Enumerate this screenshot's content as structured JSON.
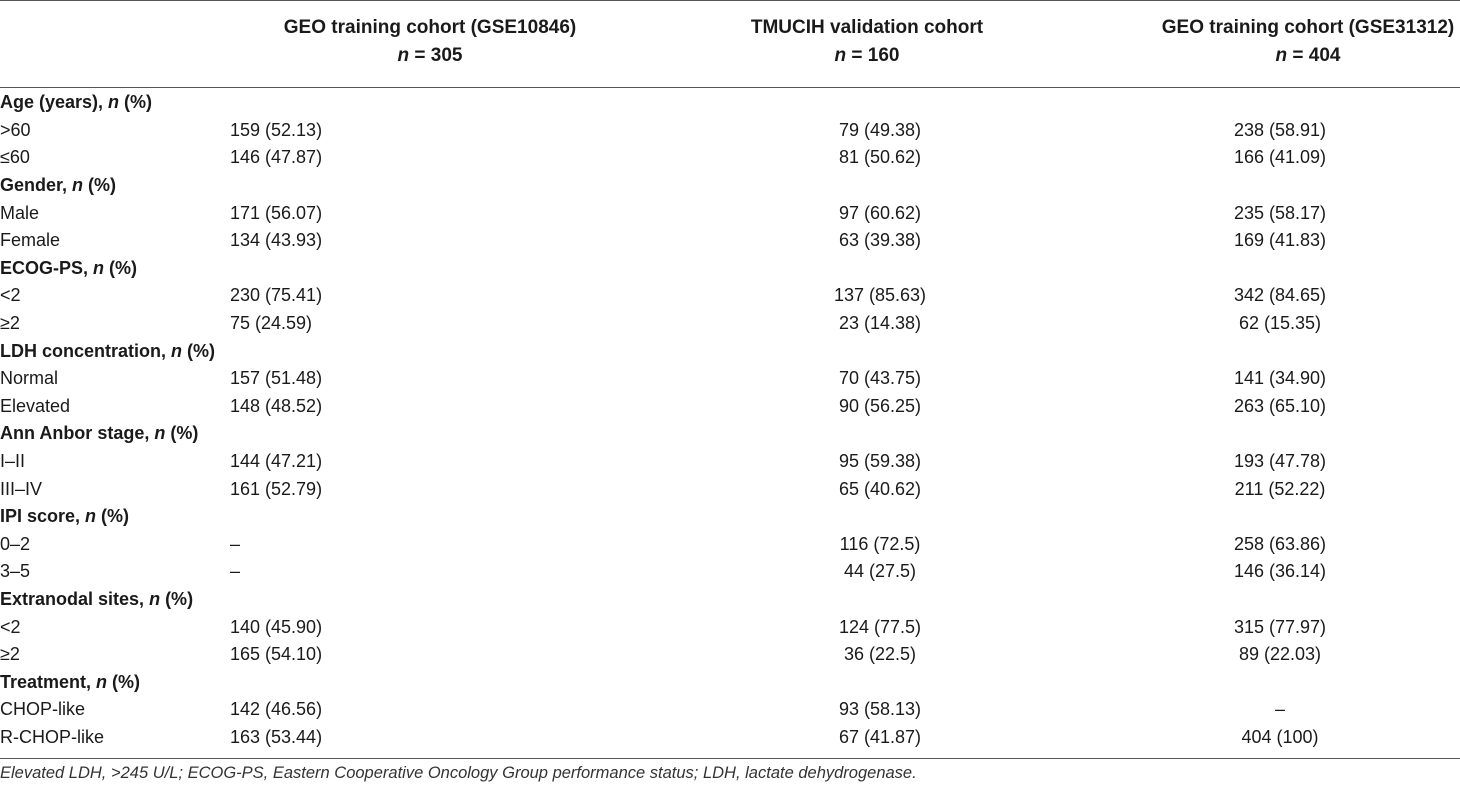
{
  "table": {
    "columns": [
      {
        "title": "GEO training cohort (GSE10846)",
        "n_label": "n",
        "n_value": " = 305"
      },
      {
        "title": "TMUCIH validation cohort",
        "n_label": "n",
        "n_value": " = 160"
      },
      {
        "title": "GEO training cohort (GSE31312)",
        "n_label": "n",
        "n_value": " = 404"
      }
    ],
    "groups": [
      {
        "label": "Age (years), ",
        "n": "n",
        "suffix": " (%)",
        "rows": [
          {
            "label": ">60",
            "values": [
              "159 (52.13)",
              "79 (49.38)",
              "238 (58.91)"
            ]
          },
          {
            "label": "≤60",
            "values": [
              "146 (47.87)",
              "81 (50.62)",
              "166 (41.09)"
            ]
          }
        ]
      },
      {
        "label": "Gender, ",
        "n": "n",
        "suffix": " (%)",
        "rows": [
          {
            "label": "Male",
            "values": [
              "171 (56.07)",
              "97 (60.62)",
              "235 (58.17)"
            ]
          },
          {
            "label": "Female",
            "values": [
              "134 (43.93)",
              "63 (39.38)",
              "169 (41.83)"
            ]
          }
        ]
      },
      {
        "label": "ECOG-PS, ",
        "n": "n",
        "suffix": " (%)",
        "rows": [
          {
            "label": "<2",
            "values": [
              "230 (75.41)",
              "137 (85.63)",
              "342 (84.65)"
            ]
          },
          {
            "label": "≥2",
            "values": [
              "75 (24.59)",
              "23 (14.38)",
              "62 (15.35)"
            ]
          }
        ]
      },
      {
        "label": "LDH concentration, ",
        "n": "n",
        "suffix": " (%)",
        "rows": [
          {
            "label": "Normal",
            "values": [
              "157 (51.48)",
              "70 (43.75)",
              "141 (34.90)"
            ]
          },
          {
            "label": "Elevated",
            "values": [
              "148 (48.52)",
              "90 (56.25)",
              "263 (65.10)"
            ]
          }
        ]
      },
      {
        "label": "Ann Anbor stage, ",
        "n": "n",
        "suffix": " (%)",
        "rows": [
          {
            "label": "I–II",
            "values": [
              "144 (47.21)",
              "95 (59.38)",
              "193 (47.78)"
            ]
          },
          {
            "label": "III–IV",
            "values": [
              "161 (52.79)",
              "65 (40.62)",
              "211 (52.22)"
            ]
          }
        ]
      },
      {
        "label": "IPI score, ",
        "n": "n",
        "suffix": " (%)",
        "rows": [
          {
            "label": "0–2",
            "values": [
              "–",
              "116 (72.5)",
              "258 (63.86)"
            ]
          },
          {
            "label": "3–5",
            "values": [
              "–",
              "44 (27.5)",
              "146 (36.14)"
            ]
          }
        ]
      },
      {
        "label": "Extranodal sites, ",
        "n": "n",
        "suffix": " (%)",
        "rows": [
          {
            "label": "<2",
            "values": [
              "140 (45.90)",
              "124 (77.5)",
              "315 (77.97)"
            ]
          },
          {
            "label": "≥2",
            "values": [
              "165 (54.10)",
              "36 (22.5)",
              "89 (22.03)"
            ]
          }
        ]
      },
      {
        "label": "Treatment, ",
        "n": "n",
        "suffix": " (%)",
        "rows": [
          {
            "label": "CHOP-like",
            "values": [
              "142 (46.56)",
              "93 (58.13)",
              "–"
            ]
          },
          {
            "label": "R-CHOP-like",
            "values": [
              "163 (53.44)",
              "67 (41.87)",
              "404 (100)"
            ]
          }
        ]
      }
    ]
  },
  "footnote": "Elevated LDH, >245 U/L; ECOG-PS, Eastern Cooperative Oncology Group performance status; LDH, lactate dehydrogenase."
}
